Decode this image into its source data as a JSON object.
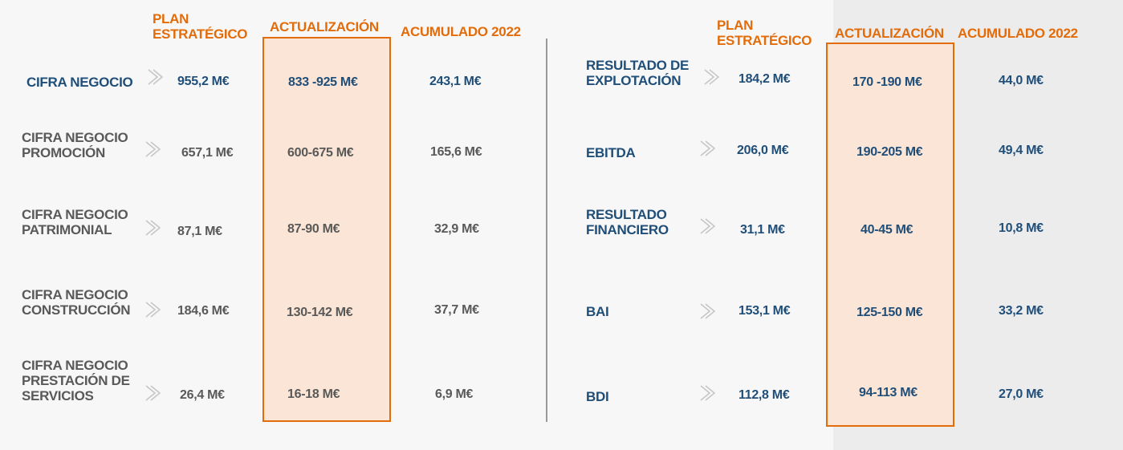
{
  "colors": {
    "accent_orange": "#e36c0a",
    "value_blue": "#1f4e79",
    "value_gray": "#595959",
    "highlight_fill": "#fbe5d6"
  },
  "headers": {
    "plan": "PLAN\nESTRATÉGICO",
    "actualizacion": "ACTUALIZACIÓN",
    "acumulado": "ACUMULADO 2022"
  },
  "left_rows": [
    {
      "label": "CIFRA NEGOCIO",
      "plan": "955,2 M€",
      "actualizacion": "833 -925 M€",
      "acumulado": "243,1 M€"
    },
    {
      "label": "CIFRA NEGOCIO\nPROMOCIÓN",
      "plan": "657,1 M€",
      "actualizacion": "600-675 M€",
      "acumulado": "165,6 M€"
    },
    {
      "label": "CIFRA NEGOCIO\nPATRIMONIAL",
      "plan": "87,1 M€",
      "actualizacion": "87-90 M€",
      "acumulado": "32,9 M€"
    },
    {
      "label": "CIFRA NEGOCIO\nCONSTRUCCIÓN",
      "plan": "184,6 M€",
      "actualizacion": "130-142 M€",
      "acumulado": "37,7 M€"
    },
    {
      "label": "CIFRA NEGOCIO\nPRESTACIÓN DE\nSERVICIOS",
      "plan": "26,4 M€",
      "actualizacion": "16-18 M€",
      "acumulado": "6,9 M€"
    }
  ],
  "right_rows": [
    {
      "label": "RESULTADO DE\nEXPLOTACIÓN",
      "plan": "184,2 M€",
      "actualizacion": "170 -190 M€",
      "acumulado": "44,0 M€"
    },
    {
      "label": "EBITDA",
      "plan": "206,0 M€",
      "actualizacion": "190-205 M€",
      "acumulado": "49,4 M€"
    },
    {
      "label": "RESULTADO\nFINANCIERO",
      "plan": "31,1 M€",
      "actualizacion": "40-45 M€",
      "acumulado": "10,8 M€"
    },
    {
      "label": "BAI",
      "plan": "153,1 M€",
      "actualizacion": "125-150 M€",
      "acumulado": "33,2 M€"
    },
    {
      "label": "BDI",
      "plan": "112,8 M€",
      "actualizacion": "94-113 M€",
      "acumulado": "27,0 M€"
    }
  ]
}
